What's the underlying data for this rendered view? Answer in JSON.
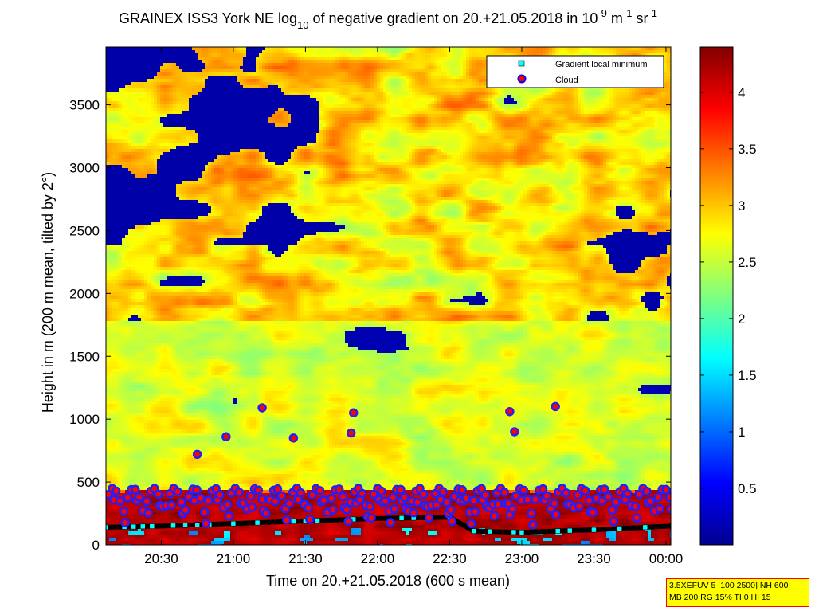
{
  "chart_data": {
    "type": "heatmap",
    "title_parts": {
      "prefix": "GRAINEX ISS3 York NE log",
      "log_base": "10",
      "middle": " of negative gradient on 20.+21.05.2018 in 10",
      "exp1": "-9",
      "unit_m": " m",
      "exp2": "-1",
      "unit_sr": " sr",
      "exp3": "-1"
    },
    "xlabel": "Time on 20.+21.05.2018 (600 s mean)",
    "ylabel": "Height in m (200 m mean, tilted by 2°)",
    "x_ticks": [
      "20:30",
      "21:00",
      "21:30",
      "22:00",
      "22:30",
      "23:00",
      "23:30",
      "00:00"
    ],
    "x_tick_minutes": [
      1230,
      1260,
      1290,
      1320,
      1350,
      1380,
      1410,
      1440
    ],
    "xlim_minutes": [
      1207,
      1442
    ],
    "y_ticks": [
      "0",
      "500",
      "1000",
      "1500",
      "2000",
      "2500",
      "3000",
      "3500"
    ],
    "y_tick_values": [
      0,
      500,
      1000,
      1500,
      2000,
      2500,
      3000,
      3500
    ],
    "ylim": [
      0,
      3960
    ],
    "colorbar": {
      "ticks": [
        "0.5",
        "1",
        "1.5",
        "2",
        "2.5",
        "3",
        "3.5",
        "4"
      ],
      "tick_values": [
        0.5,
        1,
        1.5,
        2,
        2.5,
        3,
        3.5,
        4
      ],
      "range": [
        0,
        4.4
      ],
      "colormap": "jet"
    },
    "legend": {
      "placement": "top-right",
      "entries": [
        {
          "label": "Gradient local minimum",
          "marker": "square",
          "color": "#00ffff"
        },
        {
          "label": "Cloud",
          "marker": "circle",
          "color": "#ff0000"
        }
      ]
    },
    "gradient_local_minimum_trace": {
      "x": [
        1207,
        1230,
        1260,
        1290,
        1320,
        1350,
        1360,
        1380,
        1410,
        1442
      ],
      "y": [
        140,
        150,
        170,
        190,
        210,
        220,
        110,
        100,
        120,
        150
      ]
    },
    "cloud_peaks": {
      "x": [
        1245,
        1257,
        1272,
        1285,
        1309,
        1310,
        1375,
        1377,
        1394
      ],
      "y": [
        720,
        860,
        1090,
        850,
        890,
        1050,
        1060,
        900,
        1100
      ]
    }
  },
  "info_box": {
    "line1": "3.5XEFUV 5 [100 2500] NH 600",
    "line2": "MB 200 RG 15% TI 0 HI 15"
  }
}
